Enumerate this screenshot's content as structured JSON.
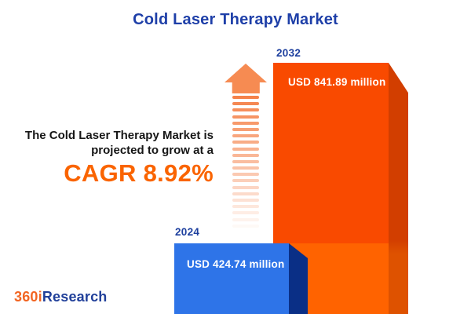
{
  "title": "Cold Laser Therapy Market",
  "annotation": {
    "line1": "The Cold Laser Therapy Market is",
    "line2": "projected to grow at a",
    "cagr": "CAGR 8.92%"
  },
  "chart_data": {
    "type": "bar",
    "title": "Cold Laser Therapy Market",
    "categories": [
      "2024",
      "2032"
    ],
    "values": [
      424.74,
      841.89
    ],
    "unit": "USD million",
    "value_labels": [
      "USD 424.74 million",
      "USD 841.89 million"
    ],
    "cagr_percent": 8.92,
    "legend": "none",
    "grid": false,
    "style": "3d-blocks with fading dashed growth arrow between bars"
  },
  "bars": [
    {
      "year": "2024",
      "label": "USD 424.74 million"
    },
    {
      "year": "2032",
      "label": "USD 841.89 million"
    }
  ],
  "arrow": {
    "stripe_count": 21,
    "direction": "up"
  },
  "logo": {
    "part1": "360i",
    "part2": "Research"
  },
  "colors": {
    "title_blue": "#1E3FA8",
    "label_navy": "#1D3F9E",
    "text_black": "#161616",
    "cagr_orange": "#FA6400",
    "bar2024_face": "#2E74E8",
    "bar2024_side": "#0A2F86",
    "bar2032_face_upper": "#F94A00",
    "bar2032_face_lower": "#FF6300",
    "bar2032_side_upper": "#D23E00",
    "bar2032_side_lower": "#DE5200",
    "arrow_orange": "#F5824A",
    "arrow_orange_head": "#F68B52",
    "logo_orange": "#F26522",
    "logo_blue": "#21409A",
    "value_text": "#FFFFFF"
  }
}
